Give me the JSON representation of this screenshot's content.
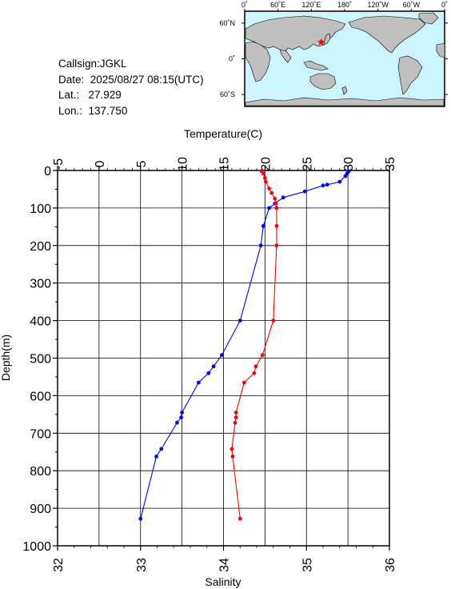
{
  "meta": {
    "callsign": "Callsign:JGKL",
    "date": "Date:  2025/08/27 08:15(UTC)",
    "lat": "Lat.:   27.929",
    "lon": "Lon.:  137.750"
  },
  "map": {
    "lon_ticks": [
      "0˚",
      "60˚E",
      "120˚E",
      "180˚",
      "120˚W",
      "60˚W",
      "0˚"
    ],
    "lat_ticks": [
      "60˚N",
      "0˚",
      "60˚S"
    ],
    "ocean_color": "#ccf5ff",
    "land_color": "#bfbfbf",
    "marker": {
      "lon": 137.75,
      "lat": 27.929,
      "color": "#ff0000"
    }
  },
  "chart_data": {
    "type": "line",
    "ylabel": "Depth(m)",
    "ylim": [
      0,
      1000
    ],
    "y_ticks": [
      0,
      100,
      200,
      300,
      400,
      500,
      600,
      700,
      800,
      900,
      1000
    ],
    "y_inverted": true,
    "temperature_axis": {
      "label": "Temperature(C)",
      "position": "top",
      "range": [
        -5,
        35
      ],
      "ticks": [
        -5,
        0,
        5,
        10,
        15,
        20,
        25,
        30,
        35
      ]
    },
    "salinity_axis": {
      "label": "Salinity",
      "position": "bottom",
      "range": [
        32,
        36
      ],
      "ticks": [
        32,
        33,
        34,
        35,
        36
      ]
    },
    "grid": true,
    "series": [
      {
        "axis": "temperature",
        "color": "#0000ff",
        "points": [
          {
            "x": 30.1,
            "depth": 2
          },
          {
            "x": 29.9,
            "depth": 8
          },
          {
            "x": 29.7,
            "depth": 15
          },
          {
            "x": 29.0,
            "depth": 30
          },
          {
            "x": 27.5,
            "depth": 38
          },
          {
            "x": 27.0,
            "depth": 40
          },
          {
            "x": 24.8,
            "depth": 56
          },
          {
            "x": 22.2,
            "depth": 72
          },
          {
            "x": 21.2,
            "depth": 88
          },
          {
            "x": 20.5,
            "depth": 100
          },
          {
            "x": 19.8,
            "depth": 148
          },
          {
            "x": 19.5,
            "depth": 200
          },
          {
            "x": 17.0,
            "depth": 400
          },
          {
            "x": 14.8,
            "depth": 492
          },
          {
            "x": 13.8,
            "depth": 522
          },
          {
            "x": 13.2,
            "depth": 540
          },
          {
            "x": 12.0,
            "depth": 565
          },
          {
            "x": 10.0,
            "depth": 645
          },
          {
            "x": 9.9,
            "depth": 658
          },
          {
            "x": 9.4,
            "depth": 672
          },
          {
            "x": 7.5,
            "depth": 742
          },
          {
            "x": 6.9,
            "depth": 762
          },
          {
            "x": 5.0,
            "depth": 928
          }
        ]
      },
      {
        "axis": "salinity",
        "color": "#ff0000",
        "points": [
          {
            "x": 34.46,
            "depth": 2
          },
          {
            "x": 34.48,
            "depth": 8
          },
          {
            "x": 34.5,
            "depth": 20
          },
          {
            "x": 34.51,
            "depth": 30
          },
          {
            "x": 34.55,
            "depth": 48
          },
          {
            "x": 34.58,
            "depth": 60
          },
          {
            "x": 34.62,
            "depth": 75
          },
          {
            "x": 34.63,
            "depth": 88
          },
          {
            "x": 34.64,
            "depth": 100
          },
          {
            "x": 34.64,
            "depth": 148
          },
          {
            "x": 34.64,
            "depth": 200
          },
          {
            "x": 34.6,
            "depth": 400
          },
          {
            "x": 34.47,
            "depth": 492
          },
          {
            "x": 34.39,
            "depth": 522
          },
          {
            "x": 34.37,
            "depth": 540
          },
          {
            "x": 34.25,
            "depth": 565
          },
          {
            "x": 34.15,
            "depth": 645
          },
          {
            "x": 34.15,
            "depth": 658
          },
          {
            "x": 34.14,
            "depth": 672
          },
          {
            "x": 34.1,
            "depth": 742
          },
          {
            "x": 34.11,
            "depth": 762
          },
          {
            "x": 34.2,
            "depth": 928
          }
        ]
      }
    ]
  }
}
